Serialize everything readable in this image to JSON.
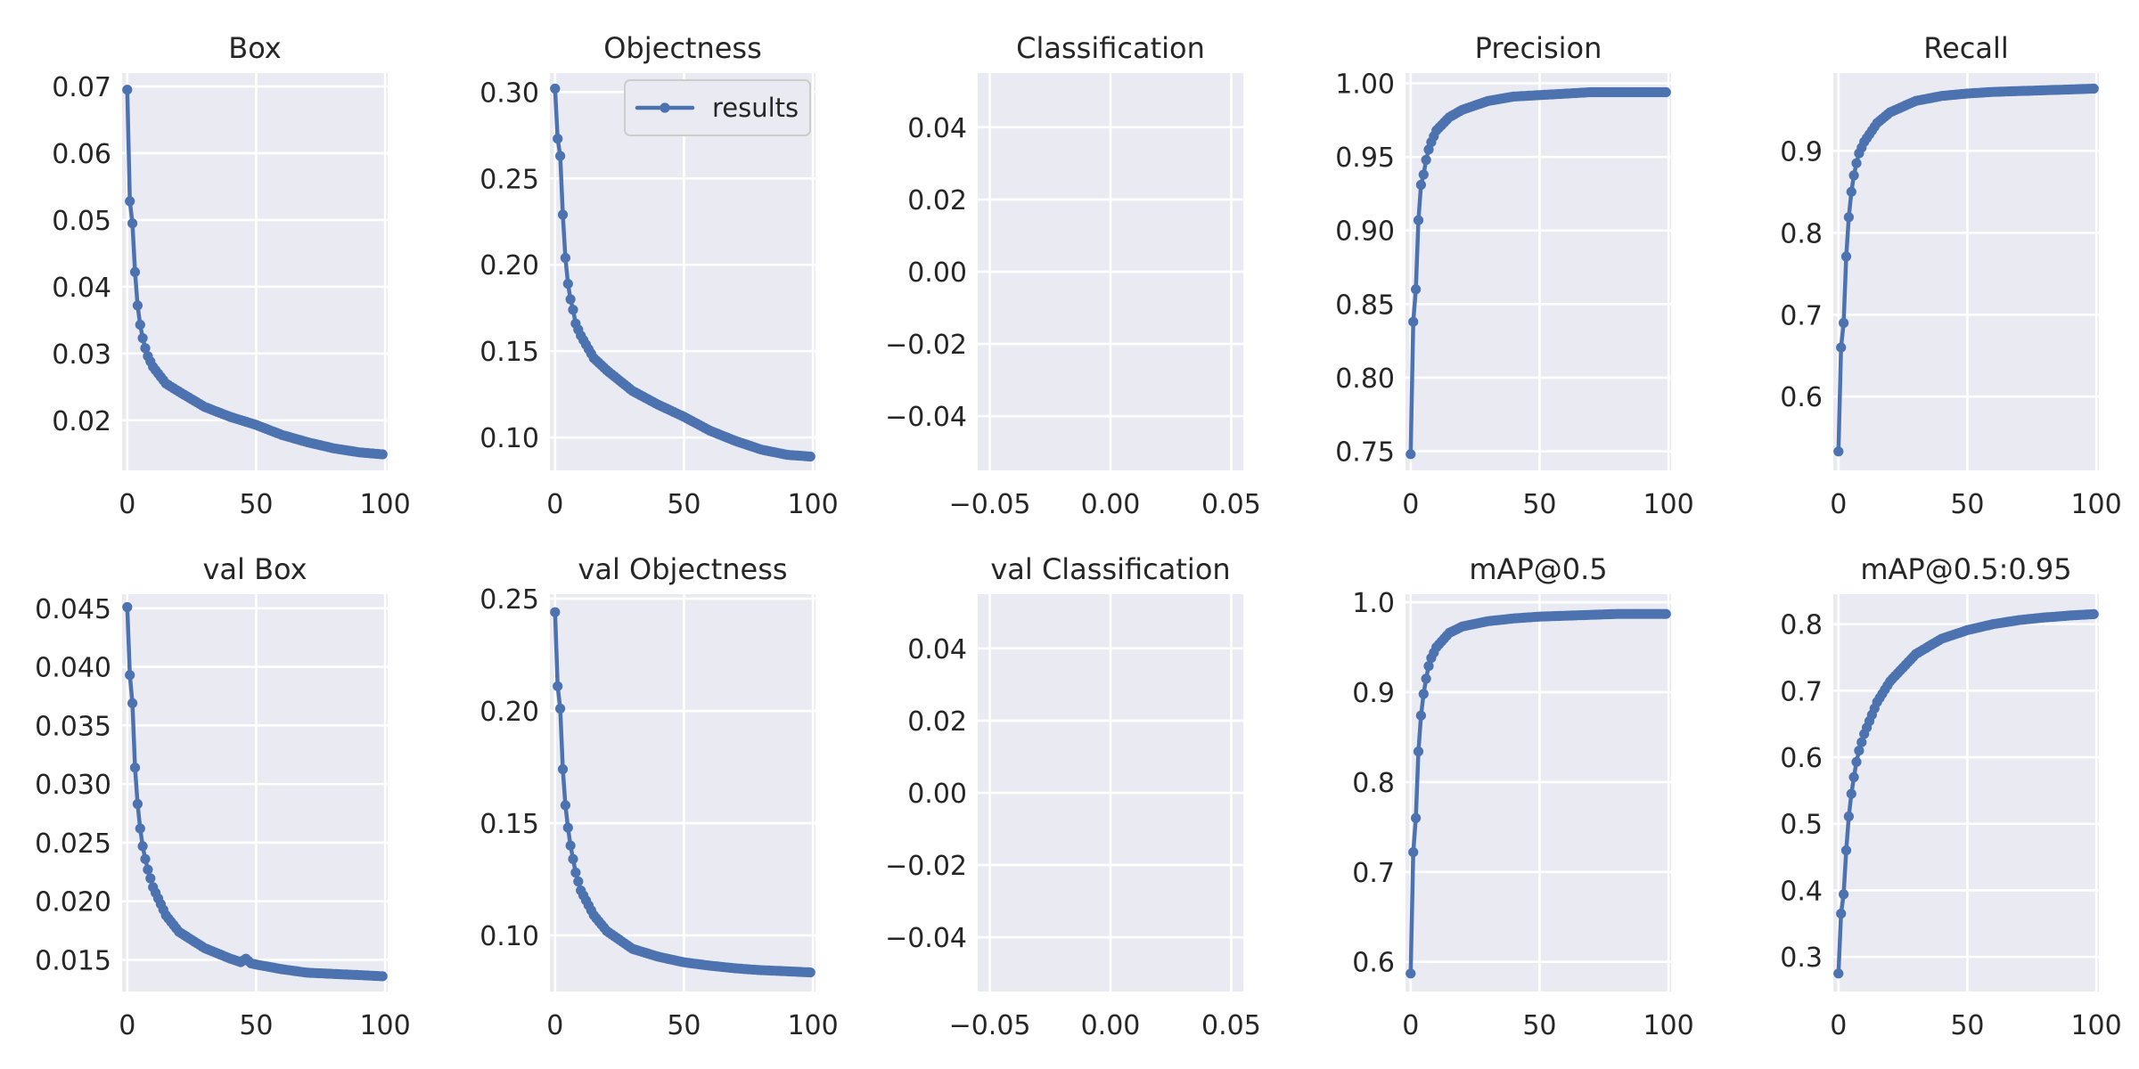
{
  "chart_data": [
    {
      "title": "Box",
      "type": "line",
      "xlim": [
        -2,
        101
      ],
      "ylim": [
        0.0125,
        0.072
      ],
      "xticks": [
        0,
        50,
        100
      ],
      "xtick_labels": [
        "0",
        "50",
        "100"
      ],
      "yticks": [
        0.02,
        0.03,
        0.04,
        0.05,
        0.06,
        0.07
      ],
      "ytick_labels": [
        "0.02",
        "0.03",
        "0.04",
        "0.05",
        "0.06",
        "0.07"
      ],
      "series": [
        {
          "name": "results",
          "x_start": 0,
          "x_end": 99,
          "anchors": [
            [
              0,
              0.0695
            ],
            [
              1,
              0.0528
            ],
            [
              2,
              0.0495
            ],
            [
              3,
              0.0422
            ],
            [
              4,
              0.0372
            ],
            [
              5,
              0.0343
            ],
            [
              6,
              0.0323
            ],
            [
              7,
              0.0308
            ],
            [
              8,
              0.0296
            ],
            [
              10,
              0.028
            ],
            [
              15,
              0.0255
            ],
            [
              20,
              0.0243
            ],
            [
              30,
              0.022
            ],
            [
              40,
              0.0205
            ],
            [
              50,
              0.0193
            ],
            [
              60,
              0.0178
            ],
            [
              70,
              0.0167
            ],
            [
              80,
              0.0158
            ],
            [
              90,
              0.0152
            ],
            [
              99,
              0.0149
            ]
          ]
        }
      ]
    },
    {
      "title": "Objectness",
      "type": "line",
      "xlim": [
        -2,
        101
      ],
      "ylim": [
        0.081,
        0.311
      ],
      "xticks": [
        0,
        50,
        100
      ],
      "xtick_labels": [
        "0",
        "50",
        "100"
      ],
      "yticks": [
        0.1,
        0.15,
        0.2,
        0.25,
        0.3
      ],
      "ytick_labels": [
        "0.10",
        "0.15",
        "0.20",
        "0.25",
        "0.30"
      ],
      "legend": {
        "label": "results",
        "placement": "upper right"
      },
      "series": [
        {
          "name": "results",
          "x_start": 0,
          "x_end": 99,
          "anchors": [
            [
              0,
              0.302
            ],
            [
              1,
              0.273
            ],
            [
              2,
              0.263
            ],
            [
              3,
              0.229
            ],
            [
              4,
              0.204
            ],
            [
              5,
              0.189
            ],
            [
              6,
              0.18
            ],
            [
              7,
              0.174
            ],
            [
              8,
              0.166
            ],
            [
              10,
              0.159
            ],
            [
              15,
              0.146
            ],
            [
              20,
              0.139
            ],
            [
              30,
              0.127
            ],
            [
              40,
              0.119
            ],
            [
              50,
              0.112
            ],
            [
              60,
              0.104
            ],
            [
              70,
              0.098
            ],
            [
              80,
              0.093
            ],
            [
              90,
              0.09
            ],
            [
              99,
              0.089
            ]
          ]
        }
      ]
    },
    {
      "title": "Classification",
      "type": "line",
      "xlim": [
        -0.055,
        0.055
      ],
      "ylim": [
        -0.055,
        0.055
      ],
      "xticks": [
        -0.05,
        0,
        0.05
      ],
      "xtick_labels": [
        "−0.05",
        "0.00",
        "0.05"
      ],
      "yticks": [
        -0.04,
        -0.02,
        0,
        0.02,
        0.04
      ],
      "ytick_labels": [
        "−0.04",
        "−0.02",
        "0.00",
        "0.02",
        "0.04"
      ],
      "series": []
    },
    {
      "title": "Precision",
      "type": "line",
      "xlim": [
        -2,
        101
      ],
      "ylim": [
        0.737,
        1.007
      ],
      "xticks": [
        0,
        50,
        100
      ],
      "xtick_labels": [
        "0",
        "50",
        "100"
      ],
      "yticks": [
        0.75,
        0.8,
        0.85,
        0.9,
        0.95,
        1.0
      ],
      "ytick_labels": [
        "0.75",
        "0.80",
        "0.85",
        "0.90",
        "0.95",
        "1.00"
      ],
      "series": [
        {
          "name": "results",
          "x_start": 0,
          "x_end": 99,
          "anchors": [
            [
              0,
              0.748
            ],
            [
              1,
              0.838
            ],
            [
              2,
              0.86
            ],
            [
              3,
              0.907
            ],
            [
              4,
              0.931
            ],
            [
              5,
              0.938
            ],
            [
              6,
              0.948
            ],
            [
              7,
              0.955
            ],
            [
              8,
              0.96
            ],
            [
              10,
              0.968
            ],
            [
              15,
              0.977
            ],
            [
              20,
              0.982
            ],
            [
              30,
              0.988
            ],
            [
              40,
              0.991
            ],
            [
              50,
              0.992
            ],
            [
              60,
              0.993
            ],
            [
              70,
              0.994
            ],
            [
              80,
              0.994
            ],
            [
              90,
              0.994
            ],
            [
              99,
              0.994
            ]
          ]
        }
      ]
    },
    {
      "title": "Recall",
      "type": "line",
      "xlim": [
        -2,
        101
      ],
      "ylim": [
        0.51,
        0.995
      ],
      "xticks": [
        0,
        50,
        100
      ],
      "xtick_labels": [
        "0",
        "50",
        "100"
      ],
      "yticks": [
        0.6,
        0.7,
        0.8,
        0.9
      ],
      "ytick_labels": [
        "0.6",
        "0.7",
        "0.8",
        "0.9"
      ],
      "series": [
        {
          "name": "results",
          "x_start": 0,
          "x_end": 99,
          "anchors": [
            [
              0,
              0.533
            ],
            [
              1,
              0.66
            ],
            [
              2,
              0.69
            ],
            [
              3,
              0.771
            ],
            [
              4,
              0.819
            ],
            [
              5,
              0.85
            ],
            [
              6,
              0.87
            ],
            [
              7,
              0.885
            ],
            [
              8,
              0.897
            ],
            [
              10,
              0.911
            ],
            [
              15,
              0.934
            ],
            [
              20,
              0.947
            ],
            [
              30,
              0.961
            ],
            [
              40,
              0.967
            ],
            [
              50,
              0.97
            ],
            [
              60,
              0.972
            ],
            [
              70,
              0.973
            ],
            [
              80,
              0.974
            ],
            [
              90,
              0.975
            ],
            [
              99,
              0.976
            ]
          ]
        }
      ]
    },
    {
      "title": "val Box",
      "type": "line",
      "xlim": [
        -2,
        101
      ],
      "ylim": [
        0.0123,
        0.0462
      ],
      "xticks": [
        0,
        50,
        100
      ],
      "xtick_labels": [
        "0",
        "50",
        "100"
      ],
      "yticks": [
        0.015,
        0.02,
        0.025,
        0.03,
        0.035,
        0.04,
        0.045
      ],
      "ytick_labels": [
        "0.015",
        "0.020",
        "0.025",
        "0.030",
        "0.035",
        "0.040",
        "0.045"
      ],
      "series": [
        {
          "name": "results",
          "x_start": 0,
          "x_end": 99,
          "anchors": [
            [
              0,
              0.0451
            ],
            [
              1,
              0.0393
            ],
            [
              2,
              0.0369
            ],
            [
              3,
              0.0314
            ],
            [
              4,
              0.0283
            ],
            [
              5,
              0.0262
            ],
            [
              6,
              0.0247
            ],
            [
              7,
              0.0236
            ],
            [
              8,
              0.0227
            ],
            [
              10,
              0.0212
            ],
            [
              15,
              0.0188
            ],
            [
              20,
              0.0174
            ],
            [
              30,
              0.016
            ],
            [
              40,
              0.0151
            ],
            [
              44,
              0.0148
            ],
            [
              46,
              0.0151
            ],
            [
              48,
              0.0147
            ],
            [
              50,
              0.0146
            ],
            [
              60,
              0.0142
            ],
            [
              70,
              0.0139
            ],
            [
              80,
              0.0138
            ],
            [
              90,
              0.0137
            ],
            [
              99,
              0.0136
            ]
          ]
        }
      ]
    },
    {
      "title": "val Objectness",
      "type": "line",
      "xlim": [
        -2,
        101
      ],
      "ylim": [
        0.075,
        0.252
      ],
      "xticks": [
        0,
        50,
        100
      ],
      "xtick_labels": [
        "0",
        "50",
        "100"
      ],
      "yticks": [
        0.1,
        0.15,
        0.2,
        0.25
      ],
      "ytick_labels": [
        "0.10",
        "0.15",
        "0.20",
        "0.25"
      ],
      "series": [
        {
          "name": "results",
          "x_start": 0,
          "x_end": 99,
          "anchors": [
            [
              0,
              0.244
            ],
            [
              1,
              0.211
            ],
            [
              2,
              0.201
            ],
            [
              3,
              0.174
            ],
            [
              4,
              0.158
            ],
            [
              5,
              0.148
            ],
            [
              6,
              0.14
            ],
            [
              7,
              0.134
            ],
            [
              8,
              0.128
            ],
            [
              10,
              0.12
            ],
            [
              15,
              0.109
            ],
            [
              20,
              0.102
            ],
            [
              30,
              0.094
            ],
            [
              40,
              0.0905
            ],
            [
              50,
              0.088
            ],
            [
              60,
              0.0865
            ],
            [
              70,
              0.0853
            ],
            [
              80,
              0.0845
            ],
            [
              90,
              0.084
            ],
            [
              99,
              0.0835
            ]
          ]
        }
      ]
    },
    {
      "title": "val Classification",
      "type": "line",
      "xlim": [
        -0.055,
        0.055
      ],
      "ylim": [
        -0.055,
        0.055
      ],
      "xticks": [
        -0.05,
        0,
        0.05
      ],
      "xtick_labels": [
        "−0.05",
        "0.00",
        "0.05"
      ],
      "yticks": [
        -0.04,
        -0.02,
        0,
        0.02,
        0.04
      ],
      "ytick_labels": [
        "−0.04",
        "−0.02",
        "0.00",
        "0.02",
        "0.04"
      ],
      "series": []
    },
    {
      "title": "mAP@0.5",
      "type": "line",
      "xlim": [
        -2,
        101
      ],
      "ylim": [
        0.567,
        1.009
      ],
      "xticks": [
        0,
        50,
        100
      ],
      "xtick_labels": [
        "0",
        "50",
        "100"
      ],
      "yticks": [
        0.6,
        0.7,
        0.8,
        0.9,
        1.0
      ],
      "ytick_labels": [
        "0.6",
        "0.7",
        "0.8",
        "0.9",
        "1.0"
      ],
      "series": [
        {
          "name": "results",
          "x_start": 0,
          "x_end": 99,
          "anchors": [
            [
              0,
              0.587
            ],
            [
              1,
              0.722
            ],
            [
              2,
              0.76
            ],
            [
              3,
              0.834
            ],
            [
              4,
              0.874
            ],
            [
              5,
              0.898
            ],
            [
              6,
              0.915
            ],
            [
              7,
              0.929
            ],
            [
              8,
              0.938
            ],
            [
              10,
              0.95
            ],
            [
              15,
              0.966
            ],
            [
              20,
              0.973
            ],
            [
              30,
              0.979
            ],
            [
              40,
              0.982
            ],
            [
              50,
              0.984
            ],
            [
              60,
              0.985
            ],
            [
              70,
              0.986
            ],
            [
              80,
              0.987
            ],
            [
              90,
              0.987
            ],
            [
              99,
              0.987
            ]
          ]
        }
      ]
    },
    {
      "title": "mAP@0.5:0.95",
      "type": "line",
      "xlim": [
        -2,
        101
      ],
      "ylim": [
        0.248,
        0.845
      ],
      "xticks": [
        0,
        50,
        100
      ],
      "xtick_labels": [
        "0",
        "50",
        "100"
      ],
      "yticks": [
        0.3,
        0.4,
        0.5,
        0.6,
        0.7,
        0.8
      ],
      "ytick_labels": [
        "0.3",
        "0.4",
        "0.5",
        "0.6",
        "0.7",
        "0.8"
      ],
      "series": [
        {
          "name": "results",
          "x_start": 0,
          "x_end": 99,
          "anchors": [
            [
              0,
              0.275
            ],
            [
              1,
              0.365
            ],
            [
              2,
              0.394
            ],
            [
              3,
              0.46
            ],
            [
              4,
              0.511
            ],
            [
              5,
              0.545
            ],
            [
              6,
              0.57
            ],
            [
              7,
              0.593
            ],
            [
              8,
              0.61
            ],
            [
              10,
              0.635
            ],
            [
              15,
              0.683
            ],
            [
              20,
              0.714
            ],
            [
              30,
              0.755
            ],
            [
              40,
              0.778
            ],
            [
              50,
              0.791
            ],
            [
              60,
              0.8
            ],
            [
              70,
              0.806
            ],
            [
              80,
              0.81
            ],
            [
              90,
              0.813
            ],
            [
              99,
              0.815
            ]
          ]
        }
      ]
    }
  ]
}
